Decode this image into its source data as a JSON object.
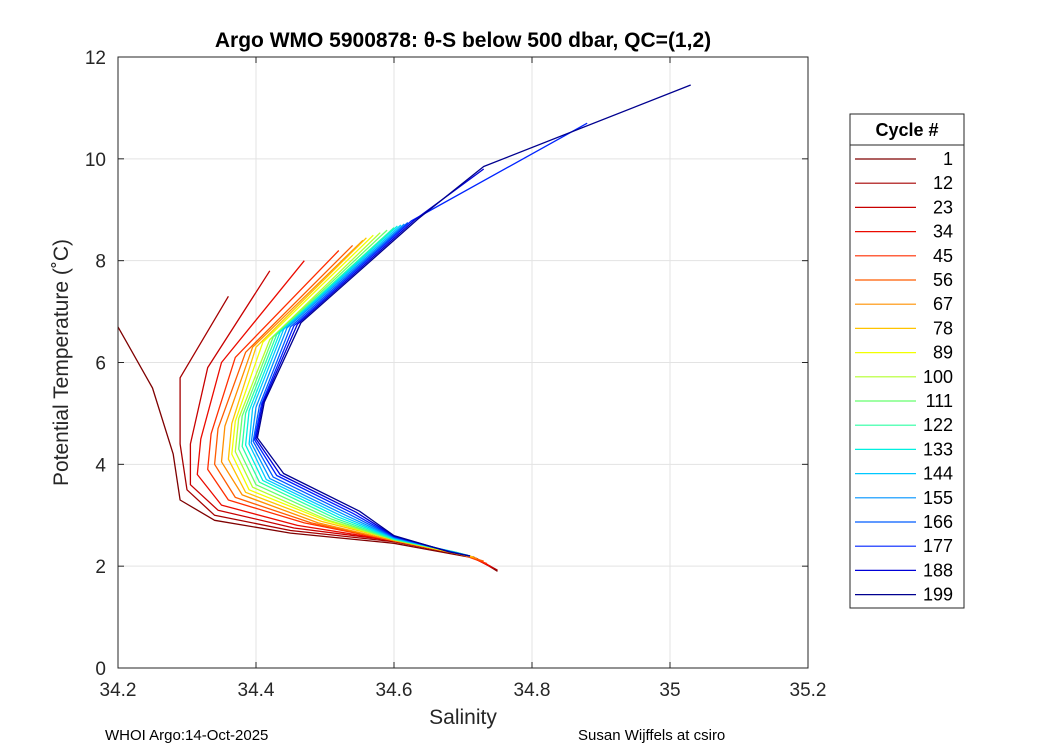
{
  "chart_data": {
    "type": "line",
    "title": "Argo WMO 5900878: θ-S below 500 dbar,  QC=(1,2)",
    "xlabel": "Salinity",
    "ylabel": "Potential Temperature (˚C)",
    "xlim": [
      34.2,
      35.2
    ],
    "ylim": [
      0,
      12
    ],
    "xticks": [
      "34.2",
      "34.4",
      "34.6",
      "34.8",
      "35",
      "35.2"
    ],
    "yticks": [
      "0",
      "2",
      "4",
      "6",
      "8",
      "10",
      "12"
    ],
    "grid": true,
    "legend": {
      "title": "Cycle #",
      "placement": "outside-right",
      "entries": [
        "1",
        "12",
        "23",
        "34",
        "45",
        "56",
        "67",
        "78",
        "89",
        "100",
        "111",
        "122",
        "133",
        "144",
        "155",
        "166",
        "177",
        "188",
        "199"
      ],
      "colors": [
        "#7f0000",
        "#a50000",
        "#c80000",
        "#eb0a00",
        "#ff2e00",
        "#ff5c00",
        "#ff9000",
        "#ffc400",
        "#f2ff00",
        "#b3ff2e",
        "#66ff6e",
        "#2cffa4",
        "#00f0e0",
        "#00c8ff",
        "#0094ff",
        "#005cff",
        "#0024ff",
        "#0000d8",
        "#00008f"
      ]
    },
    "series": [
      {
        "name": "1",
        "s": [
          34.75,
          34.72,
          34.6,
          34.45,
          34.34,
          34.29,
          34.28,
          34.25,
          34.2
        ],
        "t": [
          1.9,
          2.15,
          2.45,
          2.65,
          2.9,
          3.3,
          4.2,
          5.5,
          6.7
        ]
      },
      {
        "name": "12",
        "s": [
          34.75,
          34.715,
          34.6,
          34.45,
          34.34,
          34.3,
          34.29,
          34.29,
          34.36
        ],
        "t": [
          1.92,
          2.18,
          2.48,
          2.7,
          3.0,
          3.5,
          4.4,
          5.7,
          7.3
        ]
      },
      {
        "name": "23",
        "s": [
          34.745,
          34.71,
          34.6,
          34.455,
          34.345,
          34.305,
          34.305,
          34.33,
          34.42
        ],
        "t": [
          1.95,
          2.2,
          2.5,
          2.75,
          3.1,
          3.6,
          4.4,
          5.9,
          7.8
        ]
      },
      {
        "name": "34",
        "s": [
          34.74,
          34.705,
          34.6,
          34.46,
          34.35,
          34.315,
          34.32,
          34.35,
          34.47
        ],
        "t": [
          2.0,
          2.22,
          2.5,
          2.8,
          3.2,
          3.8,
          4.5,
          6.0,
          8.0
        ]
      },
      {
        "name": "45",
        "s": [
          34.735,
          34.7,
          34.6,
          34.47,
          34.36,
          34.33,
          34.335,
          34.37,
          34.52
        ],
        "t": [
          2.05,
          2.22,
          2.5,
          2.85,
          3.3,
          3.9,
          4.6,
          6.1,
          8.2
        ]
      },
      {
        "name": "56",
        "s": [
          34.73,
          34.7,
          34.6,
          34.48,
          34.37,
          34.34,
          34.345,
          34.385,
          34.54
        ],
        "t": [
          2.1,
          2.22,
          2.5,
          2.85,
          3.35,
          4.0,
          4.7,
          6.2,
          8.3
        ]
      },
      {
        "name": "67",
        "s": [
          34.72,
          34.695,
          34.6,
          34.49,
          34.38,
          34.35,
          34.355,
          34.395,
          34.555
        ],
        "t": [
          2.15,
          2.25,
          2.5,
          2.85,
          3.4,
          4.05,
          4.75,
          6.3,
          8.4
        ]
      },
      {
        "name": "78",
        "s": [
          34.715,
          34.69,
          34.6,
          34.495,
          34.385,
          34.36,
          34.365,
          34.4,
          34.56
        ],
        "t": [
          2.18,
          2.25,
          2.52,
          2.88,
          3.45,
          4.1,
          4.8,
          6.3,
          8.45
        ]
      },
      {
        "name": "89",
        "s": [
          34.71,
          34.69,
          34.6,
          34.5,
          34.39,
          34.365,
          34.37,
          34.41,
          34.57
        ],
        "t": [
          2.2,
          2.25,
          2.52,
          2.9,
          3.5,
          4.2,
          4.85,
          6.4,
          8.5
        ]
      },
      {
        "name": "100",
        "s": [
          34.71,
          34.69,
          34.6,
          34.505,
          34.395,
          34.37,
          34.375,
          34.42,
          34.58
        ],
        "t": [
          2.2,
          2.27,
          2.52,
          2.9,
          3.55,
          4.25,
          4.9,
          6.45,
          8.55
        ]
      },
      {
        "name": "111",
        "s": [
          34.71,
          34.69,
          34.6,
          34.51,
          34.4,
          34.375,
          34.38,
          34.425,
          34.59
        ],
        "t": [
          2.2,
          2.27,
          2.52,
          2.92,
          3.6,
          4.3,
          4.95,
          6.5,
          8.6
        ]
      },
      {
        "name": "122",
        "s": [
          34.71,
          34.688,
          34.6,
          34.515,
          34.405,
          34.38,
          34.385,
          34.43,
          34.6
        ],
        "t": [
          2.2,
          2.28,
          2.53,
          2.94,
          3.65,
          4.35,
          5.0,
          6.55,
          8.65
        ]
      },
      {
        "name": "133",
        "s": [
          34.71,
          34.686,
          34.6,
          34.52,
          34.41,
          34.385,
          34.39,
          34.435,
          34.605
        ],
        "t": [
          2.2,
          2.28,
          2.54,
          2.96,
          3.68,
          4.38,
          5.05,
          6.6,
          8.68
        ]
      },
      {
        "name": "144",
        "s": [
          34.71,
          34.685,
          34.6,
          34.525,
          34.415,
          34.39,
          34.395,
          34.44,
          34.61
        ],
        "t": [
          2.2,
          2.28,
          2.55,
          2.98,
          3.7,
          4.4,
          5.1,
          6.65,
          8.7
        ]
      },
      {
        "name": "155",
        "s": [
          34.71,
          34.684,
          34.6,
          34.53,
          34.42,
          34.393,
          34.4,
          34.445,
          34.615
        ],
        "t": [
          2.2,
          2.28,
          2.56,
          3.0,
          3.72,
          4.42,
          5.12,
          6.68,
          8.72
        ]
      },
      {
        "name": "166",
        "s": [
          34.71,
          34.683,
          34.6,
          34.535,
          34.425,
          34.396,
          34.405,
          34.45,
          34.62
        ],
        "t": [
          2.2,
          2.28,
          2.57,
          3.02,
          3.75,
          4.45,
          5.15,
          6.7,
          8.75
        ]
      },
      {
        "name": "177",
        "s": [
          34.71,
          34.682,
          34.6,
          34.54,
          34.43,
          34.398,
          34.408,
          34.455,
          34.625,
          34.88
        ],
        "t": [
          2.2,
          2.28,
          2.58,
          3.04,
          3.78,
          4.48,
          5.18,
          6.72,
          8.78,
          10.7
        ]
      },
      {
        "name": "188",
        "s": [
          34.71,
          34.681,
          34.6,
          34.545,
          34.435,
          34.4,
          34.41,
          34.46,
          34.63,
          34.73
        ],
        "t": [
          2.2,
          2.28,
          2.59,
          3.06,
          3.8,
          4.5,
          5.2,
          6.75,
          8.8,
          9.8
        ]
      },
      {
        "name": "199",
        "s": [
          34.71,
          34.68,
          34.6,
          34.55,
          34.44,
          34.402,
          34.412,
          34.465,
          34.635,
          34.73,
          35.03
        ],
        "t": [
          2.2,
          2.28,
          2.6,
          3.08,
          3.82,
          4.52,
          5.22,
          6.78,
          8.82,
          9.85,
          11.45
        ]
      }
    ]
  },
  "footer": {
    "left": "WHOI Argo:14-Oct-2025",
    "right": "Susan Wijffels at csiro"
  }
}
